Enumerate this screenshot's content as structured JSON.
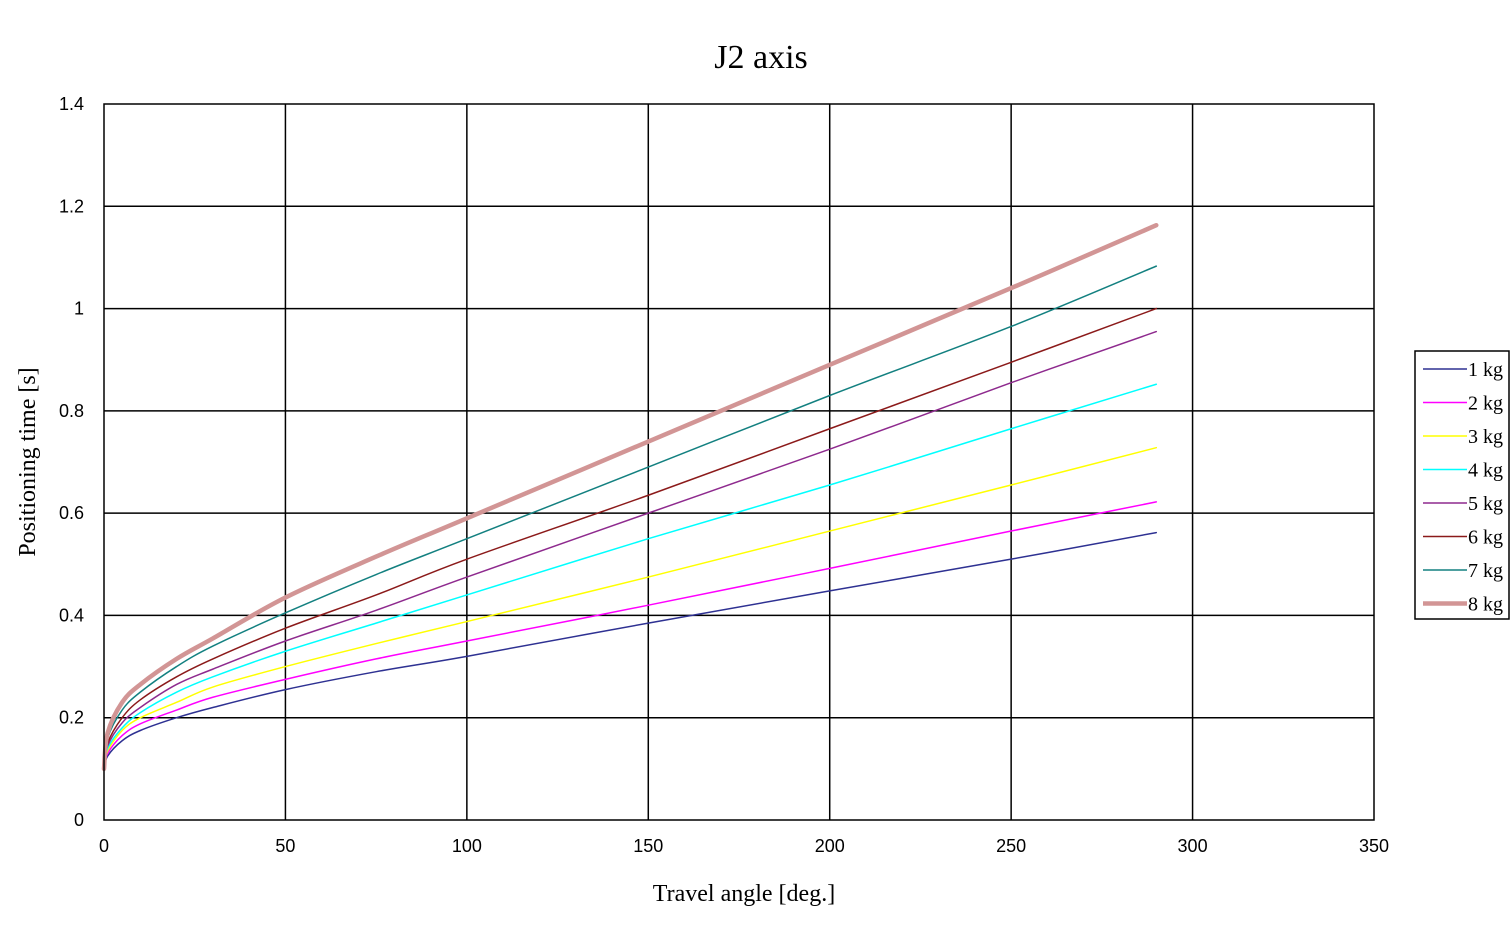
{
  "chart_data": {
    "type": "line",
    "title": "J2 axis",
    "xlabel": "Travel angle [deg.]",
    "ylabel": "Positioning time [s]",
    "xlim": [
      0,
      350
    ],
    "ylim": [
      0,
      1.4
    ],
    "xticks": [
      0,
      50,
      100,
      150,
      200,
      250,
      300,
      350
    ],
    "yticks": [
      0,
      0.2,
      0.4,
      0.6,
      0.8,
      1,
      1.2,
      1.4
    ],
    "xtick_labels": [
      "0",
      "50",
      "100",
      "150",
      "200",
      "250",
      "300",
      "350"
    ],
    "ytick_labels": [
      "0",
      "0.2",
      "0.4",
      "0.6",
      "0.8",
      "1",
      "1.2",
      "1.4"
    ],
    "grid": true,
    "legend_position": "right",
    "x": [
      0,
      1,
      5,
      10,
      20,
      30,
      50,
      75,
      100,
      150,
      200,
      250,
      290
    ],
    "series": [
      {
        "name": "1 kg",
        "color": "#2e3192",
        "width": 1.5,
        "values": [
          0.1,
          0.125,
          0.155,
          0.175,
          0.2,
          0.22,
          0.255,
          0.29,
          0.32,
          0.385,
          0.448,
          0.51,
          0.562
        ]
      },
      {
        "name": "2 kg",
        "color": "#ff00ff",
        "width": 1.5,
        "values": [
          0.1,
          0.13,
          0.165,
          0.188,
          0.215,
          0.24,
          0.275,
          0.315,
          0.35,
          0.42,
          0.492,
          0.565,
          0.622
        ]
      },
      {
        "name": "3 kg",
        "color": "#ffff00",
        "width": 1.5,
        "values": [
          0.1,
          0.135,
          0.175,
          0.2,
          0.23,
          0.26,
          0.3,
          0.345,
          0.388,
          0.475,
          0.565,
          0.655,
          0.728
        ]
      },
      {
        "name": "4 kg",
        "color": "#00ffff",
        "width": 1.5,
        "values": [
          0.1,
          0.14,
          0.18,
          0.21,
          0.25,
          0.28,
          0.33,
          0.385,
          0.44,
          0.55,
          0.655,
          0.765,
          0.852
        ]
      },
      {
        "name": "5 kg",
        "color": "#8e2a8e",
        "width": 1.5,
        "values": [
          0.1,
          0.145,
          0.19,
          0.22,
          0.265,
          0.295,
          0.35,
          0.41,
          0.475,
          0.6,
          0.725,
          0.855,
          0.955
        ]
      },
      {
        "name": "6 kg",
        "color": "#8b1a1a",
        "width": 1.5,
        "values": [
          0.1,
          0.15,
          0.2,
          0.235,
          0.28,
          0.315,
          0.375,
          0.44,
          0.51,
          0.635,
          0.765,
          0.895,
          1.0
        ]
      },
      {
        "name": "7 kg",
        "color": "#138080",
        "width": 1.5,
        "values": [
          0.1,
          0.16,
          0.215,
          0.25,
          0.3,
          0.34,
          0.405,
          0.48,
          0.55,
          0.69,
          0.83,
          0.965,
          1.083
        ]
      },
      {
        "name": "8 kg",
        "color": "#d29595",
        "width": 4.5,
        "values": [
          0.1,
          0.17,
          0.23,
          0.265,
          0.315,
          0.355,
          0.435,
          0.515,
          0.59,
          0.74,
          0.89,
          1.04,
          1.163
        ]
      }
    ]
  }
}
